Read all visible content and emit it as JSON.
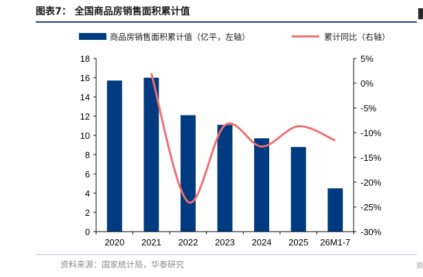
{
  "figure": {
    "title": "图表7：  全国商品房销售面积累计值",
    "source": "资料来源：国家统计局，华泰研究",
    "edge_fragment": "资"
  },
  "chart_data": {
    "type": "bar",
    "categories": [
      "2020",
      "2021",
      "2022",
      "2023",
      "2024",
      "2025",
      "26M1-7"
    ],
    "series": [
      {
        "name": "商品房销售面积累计值（亿平，左轴）",
        "type": "bar",
        "axis": "left",
        "color": "#003a80",
        "values": [
          15.7,
          16.0,
          12.1,
          11.1,
          9.7,
          8.8,
          4.5
        ]
      },
      {
        "name": "累计同比（右轴）",
        "type": "line",
        "axis": "right",
        "color": "#f26d6d",
        "values": [
          null,
          2.0,
          -24.0,
          -8.5,
          -12.8,
          -8.7,
          -11.6
        ]
      }
    ],
    "y_left": {
      "min": 0,
      "max": 18,
      "step": 2,
      "ticks": [
        "0",
        "2",
        "4",
        "6",
        "8",
        "10",
        "12",
        "14",
        "16",
        "18"
      ]
    },
    "y_right": {
      "min": -30,
      "max": 5,
      "step": 5,
      "ticks": [
        "-30%",
        "-25%",
        "-20%",
        "-15%",
        "-10%",
        "-5%",
        "0%",
        "5%"
      ]
    },
    "grid": false,
    "legend_position": "top"
  }
}
